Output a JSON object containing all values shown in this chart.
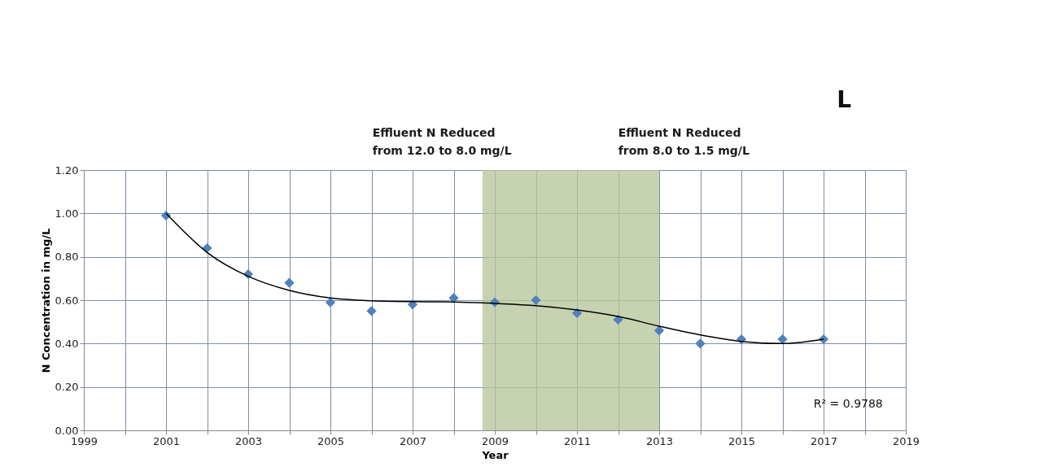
{
  "chart_data": {
    "type": "scatter",
    "xlabel": "Year",
    "ylabel": "N Concentration in mg/L",
    "x": [
      2001,
      2002,
      2003,
      2004,
      2005,
      2006,
      2007,
      2008,
      2009,
      2010,
      2011,
      2012,
      2013,
      2014,
      2015,
      2016,
      2017
    ],
    "series": [
      {
        "color": "#4f81bd",
        "marker": "diamond",
        "values": [
          0.99,
          0.84,
          0.72,
          0.68,
          0.59,
          0.55,
          0.58,
          0.61,
          0.59,
          0.6,
          0.54,
          0.51,
          0.46,
          0.4,
          0.42,
          0.42,
          0.42
        ]
      },
      {
        "type": "line",
        "color": "#000000",
        "marker": "none",
        "line_style": "solid",
        "x": [
          2001,
          2002,
          2003,
          2004,
          2005,
          2006,
          2007,
          2008,
          2009,
          2010,
          2011,
          2012,
          2013,
          2014,
          2015,
          2016,
          2017
        ],
        "values": [
          1.0,
          0.82,
          0.71,
          0.645,
          0.61,
          0.597,
          0.593,
          0.592,
          0.585,
          0.575,
          0.555,
          0.525,
          0.48,
          0.44,
          0.41,
          0.4,
          0.42
        ]
      }
    ],
    "xlim": [
      1999,
      2019
    ],
    "xticks": [
      1999,
      {
        "value": 2000,
        "label": null
      },
      2001,
      {
        "value": 2002,
        "label": null
      },
      2003,
      {
        "value": 2004,
        "label": null
      },
      2005,
      {
        "value": 2006,
        "label": null
      },
      2007,
      {
        "value": 2008,
        "label": null
      },
      2009,
      {
        "value": 2010,
        "label": null
      },
      2011,
      {
        "value": 2012,
        "label": null
      },
      2013,
      {
        "value": 2014,
        "label": null
      },
      2015,
      {
        "value": 2016,
        "label": null
      },
      2017,
      {
        "value": 2018,
        "label": null
      },
      2019
    ],
    "ylim": [
      0,
      1.2
    ],
    "yticks": [
      {
        "value": 0,
        "label": "0.00"
      },
      {
        "value": 0.2,
        "label": "0.20"
      },
      {
        "value": 0.4,
        "label": "0.40"
      },
      {
        "value": 0.6,
        "label": "0.60"
      },
      {
        "value": 0.8,
        "label": "0.80"
      },
      {
        "value": 1.0,
        "label": "1.00"
      },
      {
        "value": 1.2,
        "label": "1.20"
      }
    ],
    "grid": true,
    "bands": [
      {
        "axis": "x",
        "from": 2008.7,
        "to": 2013,
        "color": "#b4c496"
      }
    ],
    "annotations": [
      "L",
      "Effluent N Reduced\nfrom 12.0 to 8.0 mg/L",
      "Effluent N Reduced\nfrom 8.0 to 1.5 mg/L",
      "R² = 0.9788"
    ]
  }
}
